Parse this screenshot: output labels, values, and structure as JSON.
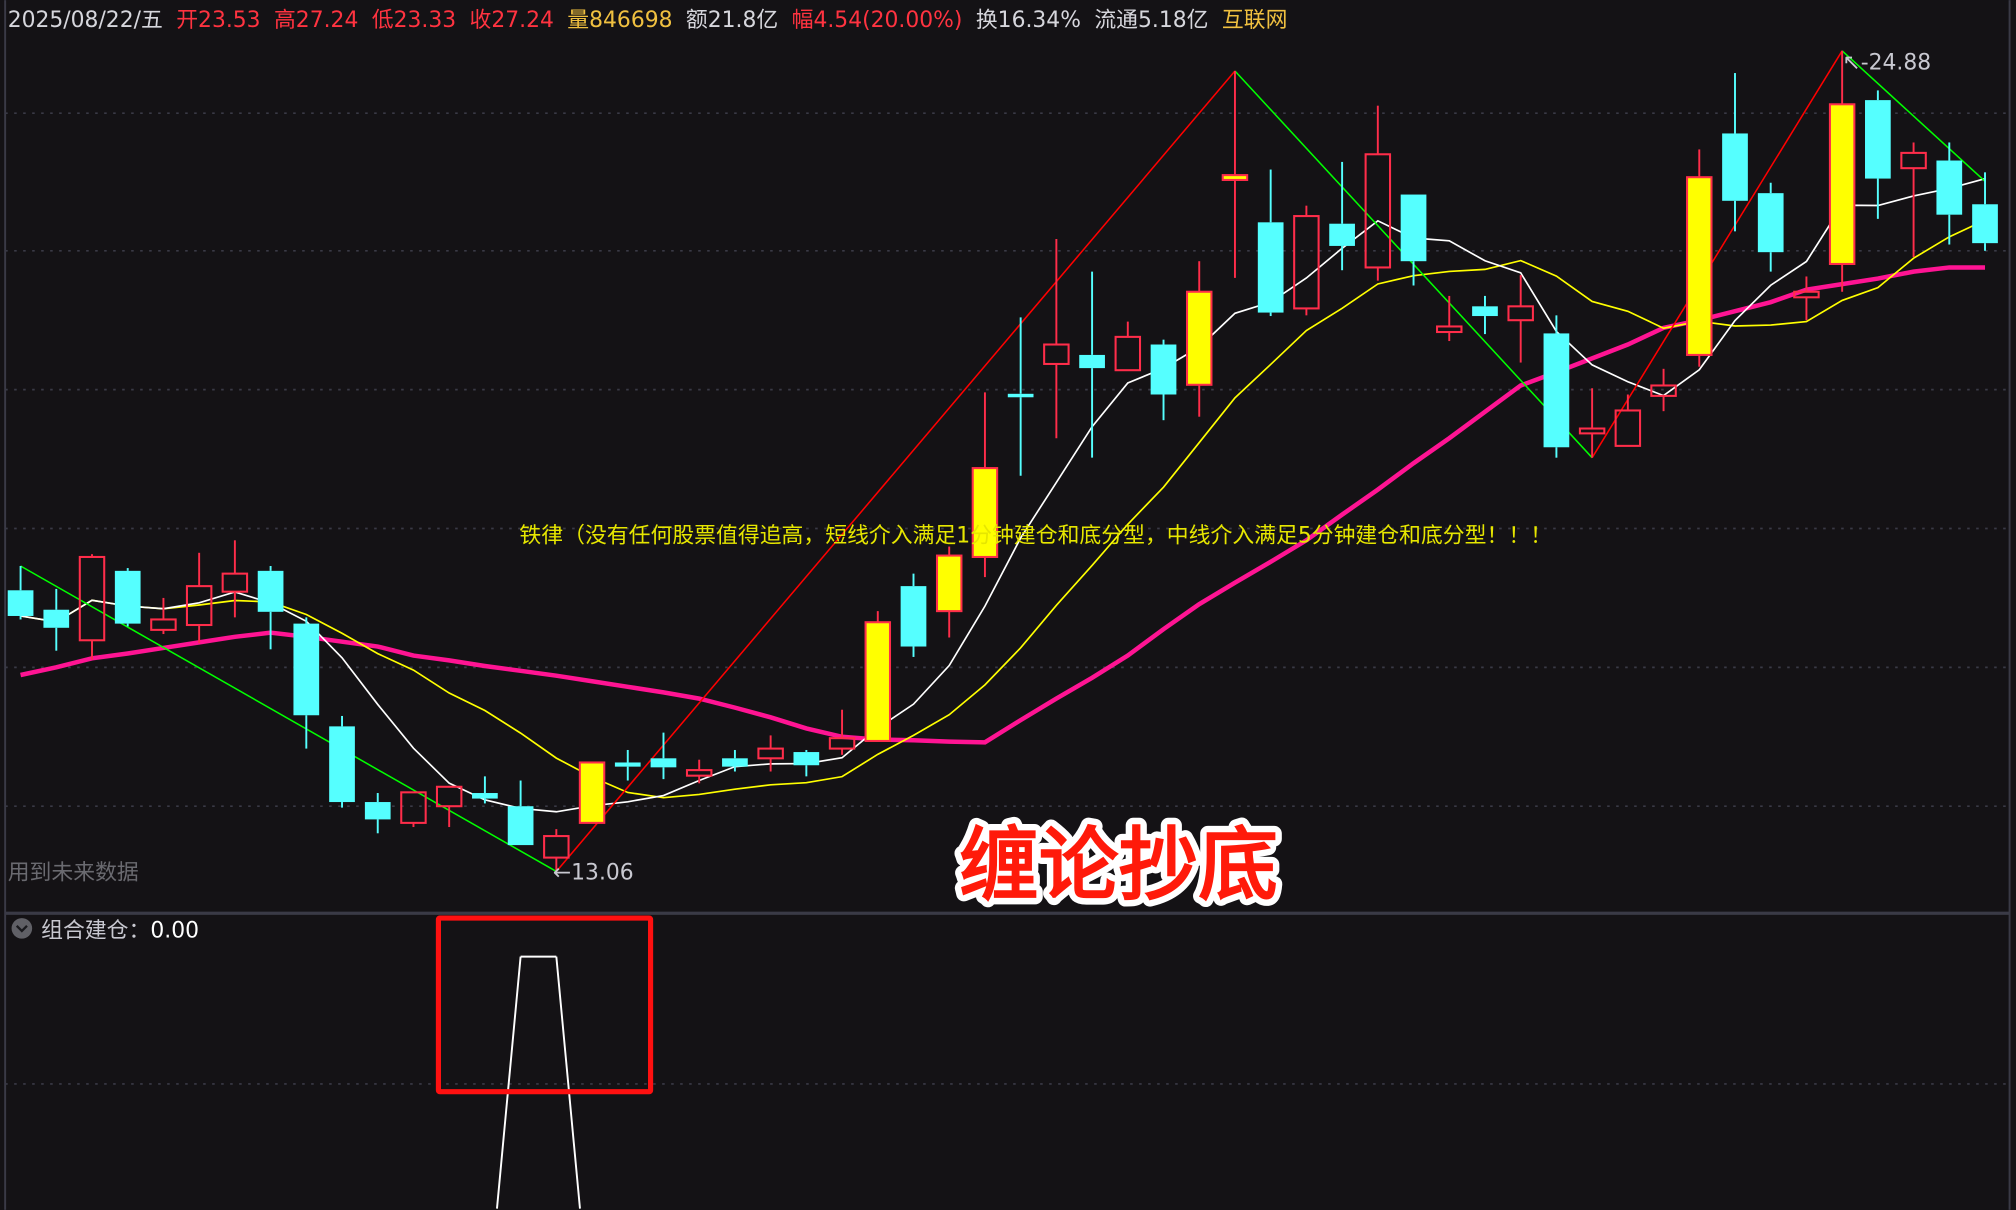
{
  "header": {
    "date": "2025/08/22/五",
    "open": "开23.53",
    "high": "高27.24",
    "low": "低23.33",
    "close": "收27.24",
    "volume": "量846698",
    "amount": "额21.8亿",
    "change": "幅4.54(20.00%)",
    "turnover": "换16.34%",
    "float": "流通5.18亿",
    "sector": "互联网"
  },
  "colors": {
    "up": "#ff2d4a",
    "down": "#55ffff",
    "limit_up_fill": "#ffff00",
    "ma_short": "#ffffff",
    "ma_mid": "#ffff00",
    "ma_long": "#ff1493",
    "zig_up": "#ff0000",
    "zig_down": "#00ff00",
    "background": "#141215"
  },
  "main_chart": {
    "note": "铁律（没有任何股票值得追高，短线介入满足1分钟建仓和底分型，中线介入满足5分钟建仓和底分型！！！",
    "future_data_label": "用到未来数据",
    "low_label": "13.06",
    "high_label": "24.88",
    "title_overlay": "缠论抄底",
    "candles": [
      [
        17.11,
        17.46,
        16.69,
        16.74
      ],
      [
        16.83,
        17.13,
        16.24,
        16.57
      ],
      [
        16.39,
        17.63,
        16.11,
        17.59
      ],
      [
        17.39,
        17.43,
        16.59,
        16.63
      ],
      [
        16.54,
        17.0,
        16.48,
        16.69
      ],
      [
        16.61,
        17.65,
        16.35,
        17.17
      ],
      [
        17.09,
        17.83,
        16.72,
        17.35
      ],
      [
        17.39,
        17.46,
        16.26,
        16.8
      ],
      [
        16.63,
        16.72,
        14.83,
        15.31
      ],
      [
        15.15,
        15.3,
        13.98,
        14.06
      ],
      [
        14.06,
        14.19,
        13.61,
        13.81
      ],
      [
        13.76,
        14.2,
        13.7,
        14.2
      ],
      [
        14.0,
        14.28,
        13.7,
        14.28
      ],
      [
        14.19,
        14.43,
        14.04,
        14.11
      ],
      [
        14.0,
        14.37,
        13.44,
        13.44
      ],
      [
        13.26,
        13.67,
        13.06,
        13.57
      ],
      [
        13.76,
        14.63,
        13.76,
        14.63
      ],
      [
        14.63,
        14.81,
        14.37,
        14.57
      ],
      [
        14.69,
        15.06,
        14.39,
        14.56
      ],
      [
        14.44,
        14.67,
        14.33,
        14.52
      ],
      [
        14.69,
        14.81,
        14.5,
        14.57
      ],
      [
        14.69,
        15.02,
        14.5,
        14.83
      ],
      [
        14.78,
        14.81,
        14.43,
        14.59
      ],
      [
        14.83,
        15.39,
        14.74,
        14.98
      ],
      [
        14.94,
        16.81,
        14.94,
        16.65
      ],
      [
        17.17,
        17.35,
        16.15,
        16.3
      ],
      [
        16.81,
        17.74,
        16.43,
        17.61
      ],
      [
        17.59,
        19.96,
        17.3,
        18.87
      ],
      [
        19.94,
        21.04,
        18.76,
        19.89
      ],
      [
        20.37,
        22.17,
        19.3,
        20.65
      ],
      [
        20.5,
        21.7,
        19.02,
        20.31
      ],
      [
        20.28,
        20.98,
        20.28,
        20.76
      ],
      [
        20.65,
        20.72,
        19.56,
        19.93
      ],
      [
        20.07,
        21.85,
        19.61,
        21.41
      ],
      [
        23.02,
        24.59,
        21.61,
        23.09
      ],
      [
        22.41,
        23.17,
        21.06,
        21.11
      ],
      [
        21.17,
        22.65,
        21.07,
        22.5
      ],
      [
        22.39,
        23.28,
        21.72,
        22.07
      ],
      [
        21.76,
        24.09,
        21.57,
        23.39
      ],
      [
        22.81,
        22.81,
        21.5,
        21.85
      ],
      [
        20.83,
        21.35,
        20.7,
        20.91
      ],
      [
        21.2,
        21.35,
        20.8,
        21.06
      ],
      [
        21.0,
        21.65,
        20.39,
        21.2
      ],
      [
        20.81,
        21.07,
        19.02,
        19.17
      ],
      [
        19.37,
        20.02,
        19.02,
        19.44
      ],
      [
        19.19,
        19.93,
        19.19,
        19.7
      ],
      [
        19.91,
        20.3,
        19.69,
        20.06
      ],
      [
        20.5,
        23.46,
        20.33,
        23.06
      ],
      [
        23.69,
        24.56,
        22.28,
        22.72
      ],
      [
        22.83,
        22.98,
        21.7,
        21.98
      ],
      [
        21.33,
        21.63,
        21.0,
        21.41
      ],
      [
        21.81,
        24.88,
        21.41,
        24.11
      ],
      [
        24.17,
        24.31,
        22.46,
        23.04
      ],
      [
        23.19,
        23.56,
        21.91,
        23.41
      ],
      [
        23.3,
        23.56,
        22.09,
        22.52
      ],
      [
        22.67,
        23.13,
        22.0,
        22.11
      ]
    ],
    "limit_up_days": [
      17,
      25,
      27,
      28,
      34,
      35,
      48,
      52
    ],
    "ma_long": [
      15.89,
      16.0,
      16.13,
      16.2,
      16.28,
      16.36,
      16.44,
      16.5,
      16.44,
      16.37,
      16.3,
      16.17,
      16.1,
      16.02,
      15.95,
      15.88,
      15.8,
      15.72,
      15.64,
      15.55,
      15.42,
      15.28,
      15.12,
      15.0,
      14.96,
      14.95,
      14.93,
      14.92,
      15.24,
      15.55,
      15.85,
      16.17,
      16.55,
      16.91,
      17.22,
      17.52,
      17.83,
      18.2,
      18.56,
      18.94,
      19.3,
      19.68,
      20.06,
      20.25,
      20.45,
      20.65,
      20.89,
      21.0,
      21.13,
      21.26,
      21.44,
      21.52,
      21.6,
      21.7,
      21.76,
      21.76
    ],
    "zigzag": [
      [
        1,
        17.46
      ],
      [
        16,
        13.06
      ],
      [
        35,
        24.59
      ],
      [
        45,
        19.02
      ],
      [
        52,
        24.88
      ],
      [
        56,
        23.0
      ]
    ]
  },
  "indicator": {
    "label": "组合建仓：",
    "value": "0.00",
    "signal": [
      0,
      0,
      0,
      0,
      0,
      0,
      0,
      0,
      0,
      0,
      0,
      0,
      0,
      0,
      1,
      1,
      0,
      0,
      0,
      0,
      0,
      0,
      0,
      0,
      0,
      0,
      0,
      0,
      0,
      0,
      0,
      0,
      0,
      0,
      0,
      0,
      0,
      0,
      0,
      0,
      0,
      0,
      0,
      0,
      0,
      0,
      0,
      0,
      0,
      0,
      0,
      0,
      0,
      0,
      0,
      0
    ]
  }
}
